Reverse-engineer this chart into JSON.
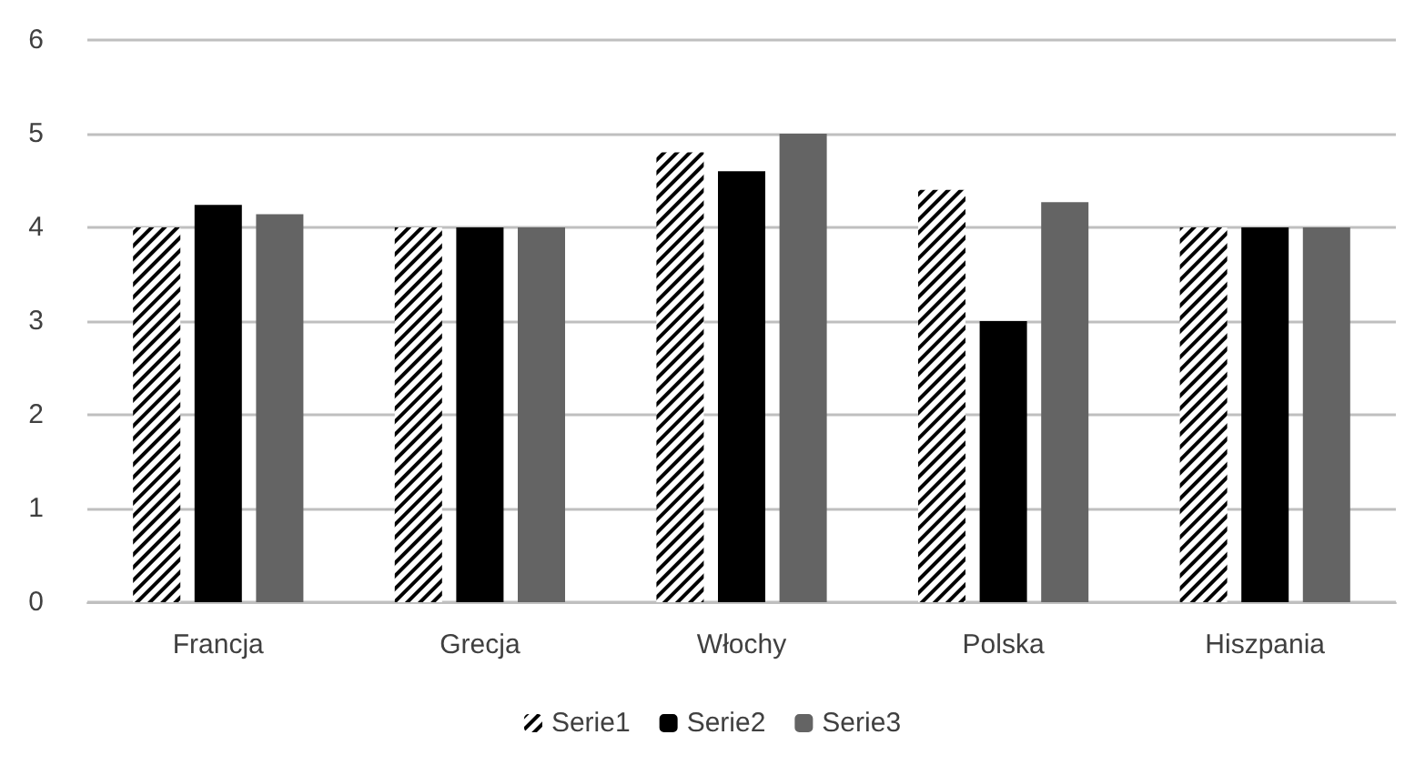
{
  "chart_data": {
    "type": "bar",
    "categories": [
      "Francja",
      "Grecja",
      "Włochy",
      "Polska",
      "Hiszpania"
    ],
    "series": [
      {
        "name": "Serie1",
        "color": "#000000",
        "values": [
          4,
          4,
          4.8,
          4.4,
          4
        ]
      },
      {
        "name": "Serie2",
        "color": "#000000",
        "values": [
          4.24,
          4,
          4.6,
          3,
          4
        ]
      },
      {
        "name": "Serie3",
        "color": "#646464",
        "values": [
          4.14,
          4,
          5,
          4.27,
          4
        ]
      }
    ],
    "ylim": [
      0,
      6
    ],
    "yticks": [
      0,
      1,
      2,
      3,
      4,
      5,
      6
    ],
    "grid": "y",
    "legend": "bottom"
  }
}
